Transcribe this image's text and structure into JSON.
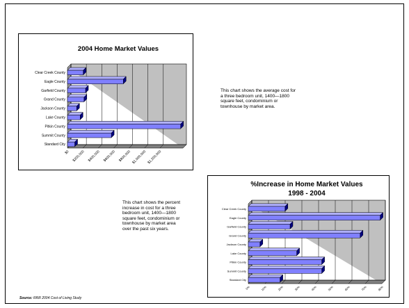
{
  "slide": {
    "note1": "This chart shows the average cost for a three bedroom unit, 1400—1800 square feet, condominium or townhouse by market area.",
    "note2": "This chart shows the percent increase in cost for a three bedroom unit, 1400—1800 square feet, condominium or townhouse by market area over the past six years.",
    "source_label": "Source:",
    "source_text": " RRR 2004 Cost of Living Study"
  },
  "chart_data": [
    {
      "type": "bar",
      "orientation": "horizontal",
      "title": "2004 Home Market Values",
      "categories": [
        "Clear Creek County",
        "Eagle County",
        "Garfield County",
        "Grand County",
        "Jackson County",
        "Lake County",
        "Pitkin County",
        "Summit County",
        "Standard City"
      ],
      "values": [
        205000,
        725000,
        235000,
        215000,
        120000,
        165000,
        1470000,
        570000,
        95000
      ],
      "xlim": [
        0,
        1500000
      ],
      "ticks": [
        0,
        200000,
        400000,
        600000,
        800000,
        1000000,
        1200000
      ],
      "tick_labels": [
        "$0",
        "$200,000",
        "$400,000",
        "$600,000",
        "$800,000",
        "$1,000,000",
        "$1,200,000"
      ],
      "grid": true,
      "colors": {
        "bar": "#8080ff",
        "bar_top": "#b0b0ff",
        "bar_side": "#000080",
        "plot_bg": "#c0c0c0"
      }
    },
    {
      "type": "bar",
      "orientation": "horizontal",
      "title": "% Increase in Home Market Values 1998 - 2004",
      "title_lines": [
        "%Increase in Home Market Values",
        "1998 - 2004"
      ],
      "categories": [
        "Clear Creek County",
        "Eagle County",
        "Garfield County",
        "Grand County",
        "Jackson County",
        "Lake County",
        "Pitkin County",
        "Summit County",
        "Standard City"
      ],
      "values": [
        0.22,
        0.79,
        0.25,
        0.67,
        0.07,
        0.29,
        0.44,
        0.44,
        0.19
      ],
      "xlim": [
        0,
        0.8
      ],
      "ticks": [
        0,
        0.1,
        0.2,
        0.3,
        0.4,
        0.5,
        0.6,
        0.7,
        0.8
      ],
      "tick_labels": [
        "0%",
        "10%",
        "20%",
        "30%",
        "40%",
        "50%",
        "60%",
        "70%",
        "80%"
      ],
      "grid": true,
      "colors": {
        "bar": "#8080ff",
        "bar_top": "#b0b0ff",
        "bar_side": "#000080",
        "plot_bg": "#c0c0c0"
      }
    }
  ]
}
